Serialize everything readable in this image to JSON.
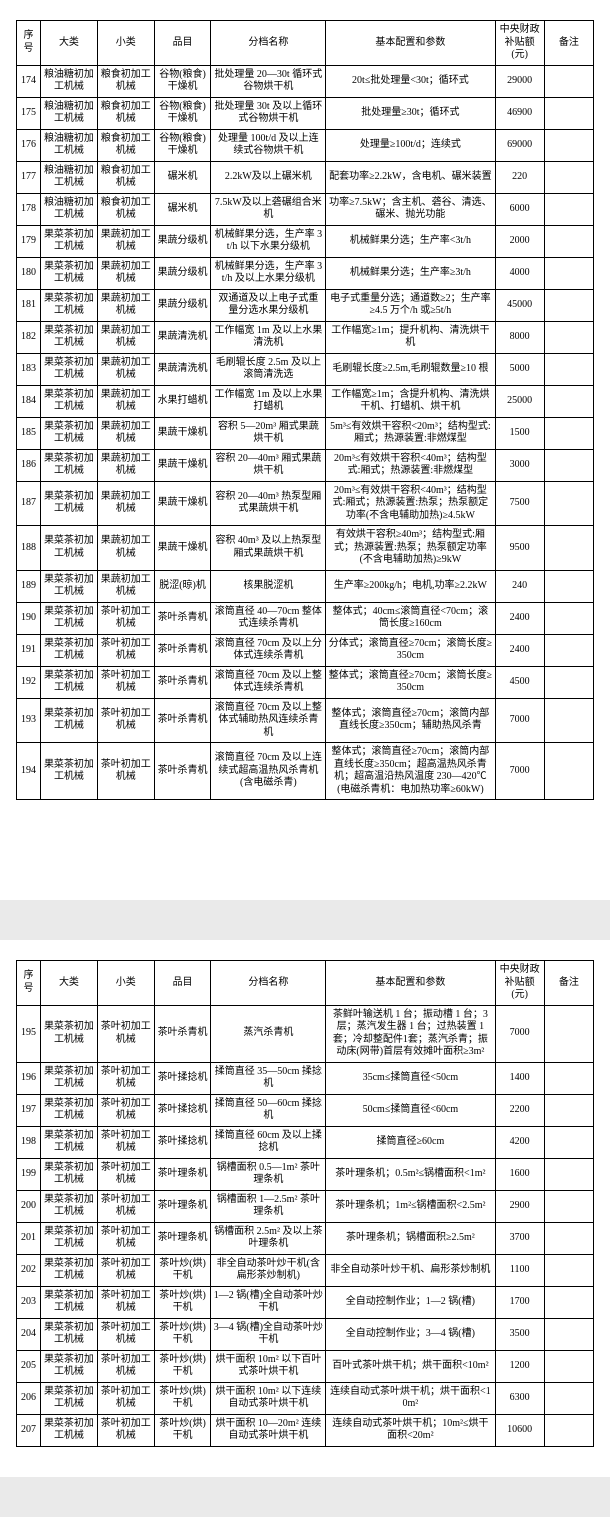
{
  "headers": [
    "序号",
    "大类",
    "小类",
    "品目",
    "分档名称",
    "基本配置和参数",
    "中央财政补贴额(元)",
    "备注"
  ],
  "page1": [
    {
      "seq": "174",
      "cat": "粮油糖初加工机械",
      "sub": "粮食初加工机械",
      "item": "谷物(粮食)干燥机",
      "grade": "批处理量 20—30t 循环式谷物烘干机",
      "spec": "20t≤批处理量<30t；循环式",
      "amt": "29000",
      "note": ""
    },
    {
      "seq": "175",
      "cat": "粮油糖初加工机械",
      "sub": "粮食初加工机械",
      "item": "谷物(粮食)干燥机",
      "grade": "批处理量 30t 及以上循环式谷物烘干机",
      "spec": "批处理量≥30t；循环式",
      "amt": "46900",
      "note": ""
    },
    {
      "seq": "176",
      "cat": "粮油糖初加工机械",
      "sub": "粮食初加工机械",
      "item": "谷物(粮食)干燥机",
      "grade": "处理量 100t/d 及以上连续式谷物烘干机",
      "spec": "处理量≥100t/d；连续式",
      "amt": "69000",
      "note": ""
    },
    {
      "seq": "177",
      "cat": "粮油糖初加工机械",
      "sub": "粮食初加工机械",
      "item": "碾米机",
      "grade": "2.2kW及以上碾米机",
      "spec": "配套功率≥2.2kW，含电机、碾米装置",
      "amt": "220",
      "note": ""
    },
    {
      "seq": "178",
      "cat": "粮油糖初加工机械",
      "sub": "粮食初加工机械",
      "item": "碾米机",
      "grade": "7.5kW及以上砻碾组合米机",
      "spec": "功率≥7.5kW；含主机、砻谷、清选、碾米、抛光功能",
      "amt": "6000",
      "note": ""
    },
    {
      "seq": "179",
      "cat": "果菜茶初加工机械",
      "sub": "果蔬初加工机械",
      "item": "果蔬分级机",
      "grade": "机械鲜果分选，生产率 3t/h 以下水果分级机",
      "spec": "机械鲜果分选；生产率<3t/h",
      "amt": "2000",
      "note": ""
    },
    {
      "seq": "180",
      "cat": "果菜茶初加工机械",
      "sub": "果蔬初加工机械",
      "item": "果蔬分级机",
      "grade": "机械鲜果分选，生产率 3t/h 及以上水果分级机",
      "spec": "机械鲜果分选；生产率≥3t/h",
      "amt": "4000",
      "note": ""
    },
    {
      "seq": "181",
      "cat": "果菜茶初加工机械",
      "sub": "果蔬初加工机械",
      "item": "果蔬分级机",
      "grade": "双通道及以上电子式重量分选水果分级机",
      "spec": "电子式重量分选；通道数≥2；生产率≥4.5 万个/h 或≥5t/h",
      "amt": "45000",
      "note": ""
    },
    {
      "seq": "182",
      "cat": "果菜茶初加工机械",
      "sub": "果蔬初加工机械",
      "item": "果蔬清洗机",
      "grade": "工作幅宽 1m 及以上水果清洗机",
      "spec": "工作幅宽≥1m；提升机构、清洗烘干机",
      "amt": "8000",
      "note": ""
    },
    {
      "seq": "183",
      "cat": "果菜茶初加工机械",
      "sub": "果蔬初加工机械",
      "item": "果蔬清洗机",
      "grade": "毛刷辊长度 2.5m 及以上滚筒清洗选",
      "spec": "毛刷辊长度≥2.5m,毛刷辊数量≥10 根",
      "amt": "5000",
      "note": ""
    },
    {
      "seq": "184",
      "cat": "果菜茶初加工机械",
      "sub": "果蔬初加工机械",
      "item": "水果打蜡机",
      "grade": "工作幅宽 1m 及以上水果打蜡机",
      "spec": "工作幅宽≥1m；含提升机构、清洗烘干机、打蜡机、烘干机",
      "amt": "25000",
      "note": ""
    },
    {
      "seq": "185",
      "cat": "果菜茶初加工机械",
      "sub": "果蔬初加工机械",
      "item": "果蔬干燥机",
      "grade": "容积 5—20m³ 厢式果蔬烘干机",
      "spec": "5m³≤有效烘干容积<20m³；结构型式:厢式；热源装置:非燃煤型",
      "amt": "1500",
      "note": ""
    },
    {
      "seq": "186",
      "cat": "果菜茶初加工机械",
      "sub": "果蔬初加工机械",
      "item": "果蔬干燥机",
      "grade": "容积 20—40m³ 厢式果蔬烘干机",
      "spec": "20m³≤有效烘干容积<40m³；结构型式:厢式；热源装置:非燃煤型",
      "amt": "3000",
      "note": ""
    },
    {
      "seq": "187",
      "cat": "果菜茶初加工机械",
      "sub": "果蔬初加工机械",
      "item": "果蔬干燥机",
      "grade": "容积 20—40m³ 热泵型厢式果蔬烘干机",
      "spec": "20m³≤有效烘干容积<40m³；结构型式:厢式；热源装置:热泵；热泵额定功率(不含电辅助加热)≥4.5kW",
      "amt": "7500",
      "note": ""
    },
    {
      "seq": "188",
      "cat": "果菜茶初加工机械",
      "sub": "果蔬初加工机械",
      "item": "果蔬干燥机",
      "grade": "容积 40m³ 及以上热泵型厢式果蔬烘干机",
      "spec": "有效烘干容积≥40m³；结构型式:厢式；热源装置:热泵；热泵额定功率(不含电辅助加热)≥9kW",
      "amt": "9500",
      "note": ""
    },
    {
      "seq": "189",
      "cat": "果菜茶初加工机械",
      "sub": "果蔬初加工机械",
      "item": "脱涩(晾)机",
      "grade": "核果脱涩机",
      "spec": "生产率≥200kg/h；电机,功率≥2.2kW",
      "amt": "240",
      "note": ""
    },
    {
      "seq": "190",
      "cat": "果菜茶初加工机械",
      "sub": "茶叶初加工机械",
      "item": "茶叶杀青机",
      "grade": "滚筒直径 40—70cm 整体式连续杀青机",
      "spec": "整体式；40cm≤滚筒直径<70cm；滚筒长度≥160cm",
      "amt": "2400",
      "note": ""
    },
    {
      "seq": "191",
      "cat": "果菜茶初加工机械",
      "sub": "茶叶初加工机械",
      "item": "茶叶杀青机",
      "grade": "滚筒直径 70cm 及以上分体式连续杀青机",
      "spec": "分体式；滚筒直径≥70cm；滚筒长度≥350cm",
      "amt": "2400",
      "note": ""
    },
    {
      "seq": "192",
      "cat": "果菜茶初加工机械",
      "sub": "茶叶初加工机械",
      "item": "茶叶杀青机",
      "grade": "滚筒直径 70cm 及以上整体式连续杀青机",
      "spec": "整体式；滚筒直径≥70cm；滚筒长度≥350cm",
      "amt": "4500",
      "note": ""
    },
    {
      "seq": "193",
      "cat": "果菜茶初加工机械",
      "sub": "茶叶初加工机械",
      "item": "茶叶杀青机",
      "grade": "滚筒直径 70cm 及以上整体式辅助热风连续杀青机",
      "spec": "整体式；滚筒直径≥70cm；滚筒内部直线长度≥350cm；辅助热风杀青",
      "amt": "7000",
      "note": ""
    },
    {
      "seq": "194",
      "cat": "果菜茶初加工机械",
      "sub": "茶叶初加工机械",
      "item": "茶叶杀青机",
      "grade": "滚筒直径 70cm 及以上连续式超高温热风杀青机(含电磁杀青)",
      "spec": "整体式；滚筒直径≥70cm；滚筒内部直线长度≥350cm；超高温热风杀青机；超高温沿热风温度 230—420℃(电磁杀青机：电加热功率≥60kW)",
      "amt": "7000",
      "note": ""
    }
  ],
  "page2": [
    {
      "seq": "195",
      "cat": "果菜茶初加工机械",
      "sub": "茶叶初加工机械",
      "item": "茶叶杀青机",
      "grade": "蒸汽杀青机",
      "spec": "茶鲜叶输送机 1 台；振动槽 1 台；3 层；蒸汽发生器 1 台；过热装置 1 套；冷却整配件1套；蒸汽杀青；振动床(网带)首层有效摊叶面积≥3m²",
      "amt": "7000",
      "note": ""
    },
    {
      "seq": "196",
      "cat": "果菜茶初加工机械",
      "sub": "茶叶初加工机械",
      "item": "茶叶揉捻机",
      "grade": "揉筒直径 35—50cm 揉捻机",
      "spec": "35cm≤揉筒直径<50cm",
      "amt": "1400",
      "note": ""
    },
    {
      "seq": "197",
      "cat": "果菜茶初加工机械",
      "sub": "茶叶初加工机械",
      "item": "茶叶揉捻机",
      "grade": "揉筒直径 50—60cm 揉捻机",
      "spec": "50cm≤揉筒直径<60cm",
      "amt": "2200",
      "note": ""
    },
    {
      "seq": "198",
      "cat": "果菜茶初加工机械",
      "sub": "茶叶初加工机械",
      "item": "茶叶揉捻机",
      "grade": "揉筒直径 60cm 及以上揉捻机",
      "spec": "揉筒直径≥60cm",
      "amt": "4200",
      "note": ""
    },
    {
      "seq": "199",
      "cat": "果菜茶初加工机械",
      "sub": "茶叶初加工机械",
      "item": "茶叶理条机",
      "grade": "锅槽面积 0.5—1m² 茶叶理条机",
      "spec": "茶叶理条机；0.5m²≤锅槽面积<1m²",
      "amt": "1600",
      "note": ""
    },
    {
      "seq": "200",
      "cat": "果菜茶初加工机械",
      "sub": "茶叶初加工机械",
      "item": "茶叶理条机",
      "grade": "锅槽面积 1—2.5m² 茶叶理条机",
      "spec": "茶叶理条机；1m²≤锅槽面积<2.5m²",
      "amt": "2900",
      "note": ""
    },
    {
      "seq": "201",
      "cat": "果菜茶初加工机械",
      "sub": "茶叶初加工机械",
      "item": "茶叶理条机",
      "grade": "锅槽面积 2.5m² 及以上茶叶理条机",
      "spec": "茶叶理条机；锅槽面积≥2.5m²",
      "amt": "3700",
      "note": ""
    },
    {
      "seq": "202",
      "cat": "果菜茶初加工机械",
      "sub": "茶叶初加工机械",
      "item": "茶叶炒(烘)干机",
      "grade": "非全自动茶叶炒干机(含扁形茶炒制机)",
      "spec": "非全自动茶叶炒干机、扁形茶炒制机",
      "amt": "1100",
      "note": ""
    },
    {
      "seq": "203",
      "cat": "果菜茶初加工机械",
      "sub": "茶叶初加工机械",
      "item": "茶叶炒(烘)干机",
      "grade": "1—2 锅(槽)全自动茶叶炒干机",
      "spec": "全自动控制作业；1—2 锅(槽)",
      "amt": "1700",
      "note": ""
    },
    {
      "seq": "204",
      "cat": "果菜茶初加工机械",
      "sub": "茶叶初加工机械",
      "item": "茶叶炒(烘)干机",
      "grade": "3—4 锅(槽)全自动茶叶炒干机",
      "spec": "全自动控制作业；3—4 锅(槽)",
      "amt": "3500",
      "note": ""
    },
    {
      "seq": "205",
      "cat": "果菜茶初加工机械",
      "sub": "茶叶初加工机械",
      "item": "茶叶炒(烘)干机",
      "grade": "烘干面积 10m² 以下百叶式茶叶烘干机",
      "spec": "百叶式茶叶烘干机；烘干面积<10m²",
      "amt": "1200",
      "note": ""
    },
    {
      "seq": "206",
      "cat": "果菜茶初加工机械",
      "sub": "茶叶初加工机械",
      "item": "茶叶炒(烘)干机",
      "grade": "烘干面积 10m² 以下连续自动式茶叶烘干机",
      "spec": "连续自动式茶叶烘干机；烘干面积<10m²",
      "amt": "6300",
      "note": ""
    },
    {
      "seq": "207",
      "cat": "果菜茶初加工机械",
      "sub": "茶叶初加工机械",
      "item": "茶叶炒(烘)干机",
      "grade": "烘干面积 10—20m² 连续自动式茶叶烘干机",
      "spec": "连续自动式茶叶烘干机；10m²≤烘干面积<20m²",
      "amt": "10600",
      "note": ""
    }
  ]
}
